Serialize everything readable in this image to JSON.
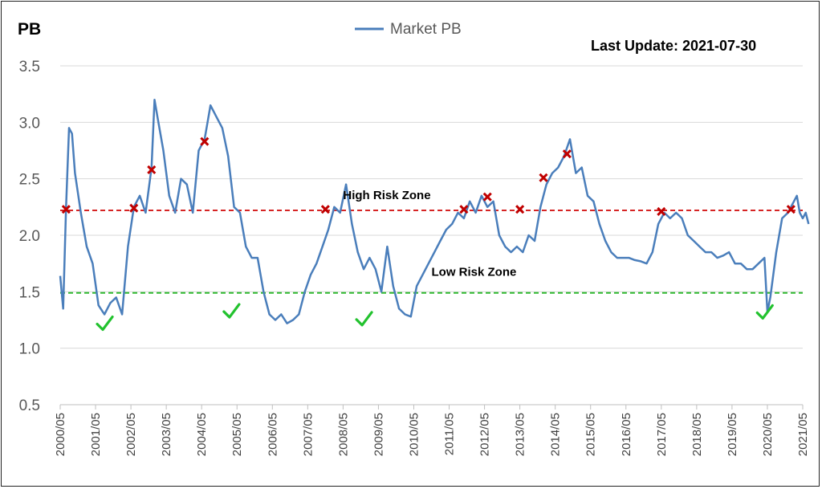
{
  "chart_data": {
    "type": "line",
    "ylabel": "PB",
    "ylim": [
      0.5,
      3.5
    ],
    "yticks": [
      "0.5",
      "1.0",
      "1.5",
      "2.0",
      "2.5",
      "3.0",
      "3.5"
    ],
    "xticks": [
      "2000/05",
      "2001/05",
      "2002/05",
      "2003/05",
      "2004/05",
      "2005/05",
      "2006/05",
      "2007/05",
      "2008/05",
      "2009/05",
      "2010/05",
      "2011/05",
      "2012/05",
      "2013/05",
      "2014/05",
      "2015/05",
      "2016/05",
      "2017/05",
      "2018/05",
      "2019/05",
      "2020/05",
      "2021/05"
    ],
    "grid": "horizontal",
    "legend_position": "top-center",
    "annotation": "Last Update: 2021-07-30",
    "series": [
      {
        "name": "Market PB",
        "color": "#4a7ebb",
        "points": [
          [
            "2000-05",
            1.64
          ],
          [
            "2000-06",
            1.35
          ],
          [
            "2000-07",
            2.25
          ],
          [
            "2000-08",
            2.95
          ],
          [
            "2000-09",
            2.9
          ],
          [
            "2000-10",
            2.55
          ],
          [
            "2000-12",
            2.2
          ],
          [
            "2001-02",
            1.9
          ],
          [
            "2001-04",
            1.75
          ],
          [
            "2001-06",
            1.38
          ],
          [
            "2001-08",
            1.3
          ],
          [
            "2001-10",
            1.4
          ],
          [
            "2001-12",
            1.45
          ],
          [
            "2002-02",
            1.3
          ],
          [
            "2002-04",
            1.9
          ],
          [
            "2002-06",
            2.25
          ],
          [
            "2002-08",
            2.35
          ],
          [
            "2002-10",
            2.2
          ],
          [
            "2002-12",
            2.6
          ],
          [
            "2003-01",
            3.2
          ],
          [
            "2003-02",
            3.05
          ],
          [
            "2003-04",
            2.75
          ],
          [
            "2003-06",
            2.35
          ],
          [
            "2003-08",
            2.2
          ],
          [
            "2003-10",
            2.5
          ],
          [
            "2003-12",
            2.45
          ],
          [
            "2004-02",
            2.2
          ],
          [
            "2004-04",
            2.75
          ],
          [
            "2004-06",
            2.85
          ],
          [
            "2004-08",
            3.15
          ],
          [
            "2004-10",
            3.05
          ],
          [
            "2004-12",
            2.95
          ],
          [
            "2005-02",
            2.7
          ],
          [
            "2005-04",
            2.25
          ],
          [
            "2005-06",
            2.2
          ],
          [
            "2005-08",
            1.9
          ],
          [
            "2005-10",
            1.8
          ],
          [
            "2005-12",
            1.8
          ],
          [
            "2006-02",
            1.5
          ],
          [
            "2006-04",
            1.3
          ],
          [
            "2006-06",
            1.25
          ],
          [
            "2006-08",
            1.3
          ],
          [
            "2006-10",
            1.22
          ],
          [
            "2006-12",
            1.25
          ],
          [
            "2007-02",
            1.3
          ],
          [
            "2007-04",
            1.5
          ],
          [
            "2007-06",
            1.65
          ],
          [
            "2007-08",
            1.75
          ],
          [
            "2007-10",
            1.9
          ],
          [
            "2007-12",
            2.05
          ],
          [
            "2008-02",
            2.25
          ],
          [
            "2008-04",
            2.2
          ],
          [
            "2008-06",
            2.45
          ],
          [
            "2008-08",
            2.1
          ],
          [
            "2008-10",
            1.85
          ],
          [
            "2008-12",
            1.7
          ],
          [
            "2009-02",
            1.8
          ],
          [
            "2009-04",
            1.7
          ],
          [
            "2009-06",
            1.5
          ],
          [
            "2009-08",
            1.9
          ],
          [
            "2009-10",
            1.55
          ],
          [
            "2009-12",
            1.35
          ],
          [
            "2010-02",
            1.3
          ],
          [
            "2010-04",
            1.28
          ],
          [
            "2010-06",
            1.55
          ],
          [
            "2010-08",
            1.65
          ],
          [
            "2010-10",
            1.75
          ],
          [
            "2010-12",
            1.85
          ],
          [
            "2011-02",
            1.95
          ],
          [
            "2011-04",
            2.05
          ],
          [
            "2011-06",
            2.1
          ],
          [
            "2011-08",
            2.2
          ],
          [
            "2011-10",
            2.15
          ],
          [
            "2011-12",
            2.3
          ],
          [
            "2012-02",
            2.2
          ],
          [
            "2012-04",
            2.35
          ],
          [
            "2012-06",
            2.25
          ],
          [
            "2012-08",
            2.3
          ],
          [
            "2012-10",
            2.0
          ],
          [
            "2012-12",
            1.9
          ],
          [
            "2013-02",
            1.85
          ],
          [
            "2013-04",
            1.9
          ],
          [
            "2013-06",
            1.85
          ],
          [
            "2013-08",
            2.0
          ],
          [
            "2013-10",
            1.95
          ],
          [
            "2013-12",
            2.25
          ],
          [
            "2014-02",
            2.45
          ],
          [
            "2014-04",
            2.55
          ],
          [
            "2014-06",
            2.6
          ],
          [
            "2014-08",
            2.7
          ],
          [
            "2014-10",
            2.85
          ],
          [
            "2014-12",
            2.55
          ],
          [
            "2015-02",
            2.6
          ],
          [
            "2015-04",
            2.35
          ],
          [
            "2015-06",
            2.3
          ],
          [
            "2015-08",
            2.1
          ],
          [
            "2015-10",
            1.95
          ],
          [
            "2015-12",
            1.85
          ],
          [
            "2016-02",
            1.8
          ],
          [
            "2016-04",
            1.8
          ],
          [
            "2016-06",
            1.8
          ],
          [
            "2016-08",
            1.78
          ],
          [
            "2016-10",
            1.77
          ],
          [
            "2016-12",
            1.75
          ],
          [
            "2017-02",
            1.85
          ],
          [
            "2017-04",
            2.1
          ],
          [
            "2017-06",
            2.2
          ],
          [
            "2017-08",
            2.15
          ],
          [
            "2017-10",
            2.2
          ],
          [
            "2017-12",
            2.15
          ],
          [
            "2018-02",
            2.0
          ],
          [
            "2018-04",
            1.95
          ],
          [
            "2018-06",
            1.9
          ],
          [
            "2018-08",
            1.85
          ],
          [
            "2018-10",
            1.85
          ],
          [
            "2018-12",
            1.8
          ],
          [
            "2019-02",
            1.82
          ],
          [
            "2019-04",
            1.85
          ],
          [
            "2019-06",
            1.75
          ],
          [
            "2019-08",
            1.75
          ],
          [
            "2019-10",
            1.7
          ],
          [
            "2019-12",
            1.7
          ],
          [
            "2020-02",
            1.75
          ],
          [
            "2020-04",
            1.8
          ],
          [
            "2020-05",
            1.32
          ],
          [
            "2020-06",
            1.45
          ],
          [
            "2020-08",
            1.85
          ],
          [
            "2020-10",
            2.15
          ],
          [
            "2020-12",
            2.2
          ],
          [
            "2021-02",
            2.3
          ],
          [
            "2021-03",
            2.35
          ],
          [
            "2021-04",
            2.2
          ],
          [
            "2021-05",
            2.15
          ],
          [
            "2021-06",
            2.2
          ],
          [
            "2021-07",
            2.1
          ]
        ]
      }
    ],
    "reference_lines": [
      {
        "label": "High Risk Zone",
        "value": 2.22,
        "color": "#d62424",
        "label_x": "2008-05"
      },
      {
        "label": "Low Risk Zone",
        "value": 1.49,
        "color": "#2fb82f",
        "label_x": "2010-11"
      }
    ],
    "high_markers": [
      {
        "x": "2000-07",
        "y": 2.23
      },
      {
        "x": "2002-06",
        "y": 2.24
      },
      {
        "x": "2002-12",
        "y": 2.58
      },
      {
        "x": "2004-06",
        "y": 2.83
      },
      {
        "x": "2007-11",
        "y": 2.23
      },
      {
        "x": "2011-10",
        "y": 2.23
      },
      {
        "x": "2012-06",
        "y": 2.34
      },
      {
        "x": "2013-05",
        "y": 2.23
      },
      {
        "x": "2014-01",
        "y": 2.51
      },
      {
        "x": "2014-09",
        "y": 2.72
      },
      {
        "x": "2017-05",
        "y": 2.21
      },
      {
        "x": "2021-01",
        "y": 2.23
      }
    ],
    "low_markers": [
      {
        "x": "2001-08",
        "y": 1.2
      },
      {
        "x": "2005-03",
        "y": 1.31
      },
      {
        "x": "2008-12",
        "y": 1.24
      },
      {
        "x": "2020-04",
        "y": 1.3
      }
    ]
  }
}
